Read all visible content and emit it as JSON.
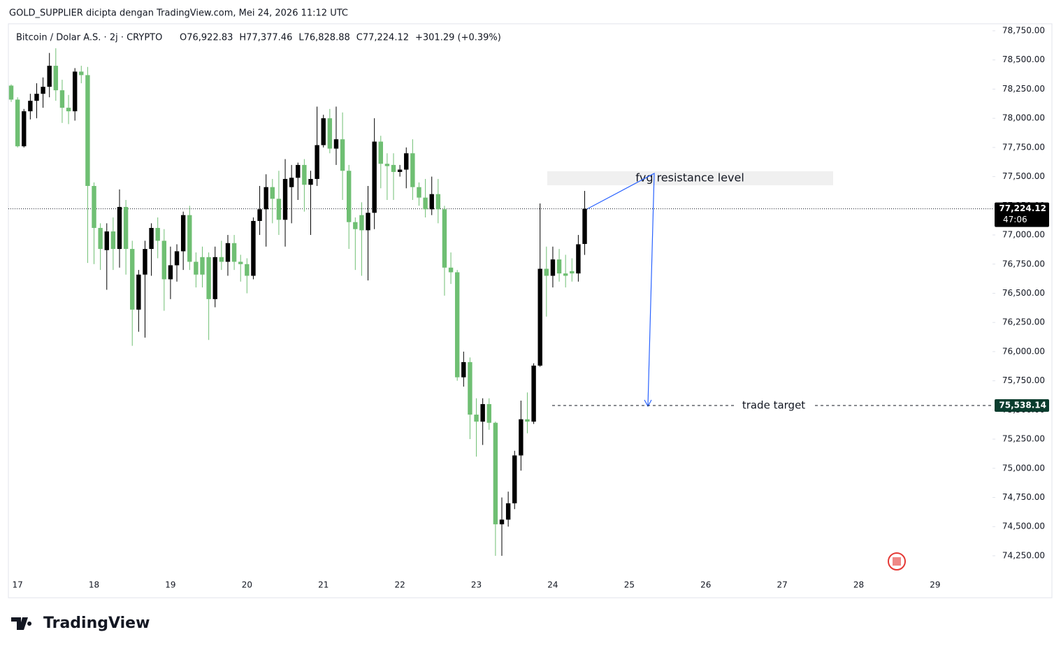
{
  "header": {
    "credit": "GOLD_SUPPLIER dicipta dengan TradingView.com, Mei 24, 2026 11:12 UTC",
    "brand": "TradingView"
  },
  "chart_data": {
    "type": "candlestick",
    "symbol": "Bitcoin / Dolar A.S. · 2j · CRYPTO",
    "legend_text": [
      "O76,922.83",
      "H77,377.46",
      "L76,828.88",
      "C77,224.12",
      "+301.29 (+0.39%)"
    ],
    "up_color": "#000000",
    "down_color": "#6fbf73",
    "x": [
      16.9167,
      17,
      17.0833,
      17.1667,
      17.25,
      17.3333,
      17.4167,
      17.5,
      17.5833,
      17.6667,
      17.75,
      17.8333,
      17.9167,
      18,
      18.0833,
      18.1667,
      18.25,
      18.3333,
      18.4167,
      18.5,
      18.5833,
      18.6667,
      18.75,
      18.8333,
      18.9167,
      19,
      19.0833,
      19.1667,
      19.25,
      19.3333,
      19.4167,
      19.5,
      19.5833,
      19.6667,
      19.75,
      19.8333,
      19.9167,
      20,
      20.0833,
      20.1667,
      20.25,
      20.3333,
      20.4167,
      20.5,
      20.5833,
      20.6667,
      20.75,
      20.8333,
      20.9167,
      21,
      21.0833,
      21.1667,
      21.25,
      21.3333,
      21.4167,
      21.5,
      21.5833,
      21.6667,
      21.75,
      21.8333,
      21.9167,
      22,
      22.0833,
      22.1667,
      22.25,
      22.3333,
      22.4167,
      22.5,
      22.5833,
      22.6667,
      22.75,
      22.8333,
      22.9167,
      23,
      23.0833,
      23.1667,
      23.25,
      23.3333,
      23.4167,
      23.5,
      23.5833,
      23.6667,
      23.75,
      23.8333,
      23.9167,
      24,
      24.0833,
      24.1667,
      24.25,
      24.3333,
      24.4167
    ],
    "open": [
      78280,
      78160,
      77760,
      78060,
      78150,
      78210,
      78270,
      78450,
      78240,
      78090,
      78060,
      78400,
      78370,
      77420,
      77060,
      76870,
      77030,
      76880,
      77240,
      76880,
      76360,
      76660,
      76880,
      77060,
      76950,
      76620,
      76740,
      76860,
      77170,
      76770,
      76810,
      76810,
      76450,
      76810,
      76770,
      76930,
      76770,
      76750,
      76650,
      77120,
      77220,
      77410,
      77310,
      77130,
      77410,
      77490,
      77600,
      77430,
      77480,
      77770,
      78000,
      77740,
      77820,
      77550,
      77110,
      77170,
      77040,
      77190,
      77800,
      77610,
      77600,
      77540,
      77560,
      77700,
      77410,
      77320,
      77220,
      77350,
      77220,
      76720,
      76680,
      75780,
      75910,
      75460,
      75400,
      75550,
      75390,
      74520,
      74560,
      74700,
      75110,
      75420,
      75400,
      75880,
      76710,
      76650,
      76790,
      76670,
      76690,
      76670,
      76922.83
    ],
    "high": [
      78290,
      78180,
      78080,
      78210,
      78300,
      78350,
      78560,
      78600,
      78330,
      78200,
      78430,
      78450,
      78440,
      77450,
      77100,
      77100,
      77150,
      77390,
      77300,
      76950,
      76700,
      76950,
      77100,
      77150,
      77050,
      76900,
      76920,
      77200,
      77250,
      76850,
      76900,
      76850,
      76900,
      76950,
      77000,
      77000,
      76830,
      76800,
      77150,
      77420,
      77520,
      77480,
      77550,
      77650,
      77600,
      77620,
      77650,
      77550,
      78100,
      78030,
      78080,
      78100,
      78050,
      77600,
      77150,
      77280,
      77420,
      78000,
      77850,
      77700,
      77700,
      77600,
      77750,
      77820,
      77450,
      77480,
      77500,
      77480,
      77250,
      76850,
      76700,
      76000,
      75950,
      75600,
      75600,
      75600,
      75400,
      74750,
      74800,
      75150,
      75580,
      75650,
      75900,
      77270,
      76900,
      76900,
      76880,
      76830,
      76800,
      77000,
      77377.46
    ],
    "low": [
      78140,
      77750,
      77750,
      77990,
      78000,
      78090,
      78180,
      78150,
      77960,
      77950,
      77980,
      78300,
      76760,
      76750,
      76700,
      76530,
      76700,
      76720,
      76660,
      76050,
      76170,
      76120,
      76650,
      76800,
      76350,
      76450,
      76600,
      76700,
      76700,
      76550,
      76550,
      76100,
      76380,
      76700,
      76650,
      76700,
      76600,
      76500,
      76620,
      77000,
      76900,
      77100,
      77000,
      76900,
      77100,
      77300,
      77200,
      77000,
      77420,
      77750,
      77700,
      77600,
      77300,
      76880,
      76700,
      76650,
      76610,
      77050,
      77400,
      77300,
      77300,
      77500,
      77400,
      77300,
      77250,
      77150,
      77170,
      77100,
      76480,
      76580,
      75750,
      75700,
      75250,
      75100,
      75200,
      75330,
      74250,
      74250,
      74500,
      74650,
      74980,
      75300,
      75380,
      75870,
      76300,
      76550,
      76600,
      76550,
      76600,
      76600,
      76828.88
    ],
    "close": [
      78160,
      77760,
      78060,
      78150,
      78210,
      78270,
      78450,
      78240,
      78090,
      78060,
      78400,
      78370,
      77420,
      77060,
      76880,
      77030,
      76880,
      77240,
      76880,
      76360,
      76660,
      76880,
      77060,
      76950,
      76620,
      76740,
      76860,
      77170,
      76770,
      76660,
      76660,
      76450,
      76810,
      76770,
      76930,
      76770,
      76750,
      76650,
      77120,
      77220,
      77410,
      77310,
      77130,
      77480,
      77490,
      77600,
      77430,
      77480,
      77770,
      78000,
      77740,
      77820,
      77550,
      77110,
      77050,
      77040,
      77190,
      77800,
      77610,
      77590,
      77540,
      77560,
      77700,
      77410,
      77320,
      77220,
      77350,
      77220,
      76720,
      76680,
      75780,
      75910,
      75460,
      75400,
      75550,
      75390,
      74520,
      74560,
      74700,
      75110,
      75420,
      75400,
      75880,
      76710,
      76650,
      76790,
      76670,
      76650,
      76670,
      76920,
      77224.12
    ],
    "xlim": [
      16.88,
      29.75
    ],
    "ylim": [
      74070,
      78810
    ],
    "xticks": [
      17,
      18,
      19,
      20,
      21,
      22,
      23,
      24,
      25,
      26,
      27,
      28,
      29
    ],
    "yticks": [
      {
        "value": 74250,
        "label": "74,250.00"
      },
      {
        "value": 74500,
        "label": "74,500.00"
      },
      {
        "value": 74750,
        "label": "74,750.00"
      },
      {
        "value": 75000,
        "label": "75,000.00"
      },
      {
        "value": 75250,
        "label": "75,250.00"
      },
      {
        "value": 75500,
        "label": "75,500.00"
      },
      {
        "value": 75750,
        "label": "75,750.00"
      },
      {
        "value": 76000,
        "label": "76,000.00"
      },
      {
        "value": 76250,
        "label": "76,250.00"
      },
      {
        "value": 76500,
        "label": "76,500.00"
      },
      {
        "value": 76750,
        "label": "76,750.00"
      },
      {
        "value": 77000,
        "label": "77,000.00"
      },
      {
        "value": 77250,
        "label": "77,250.00"
      },
      {
        "value": 77500,
        "label": "77,500.00"
      },
      {
        "value": 77750,
        "label": "77,750.00"
      },
      {
        "value": 78000,
        "label": "78,000.00"
      },
      {
        "value": 78250,
        "label": "78,250.00"
      },
      {
        "value": 78500,
        "label": "78,500.00"
      },
      {
        "value": 78750,
        "label": "78,750.00"
      }
    ],
    "last_price": {
      "value": 77224.12,
      "label": "77,224.12",
      "countdown": "47:06"
    },
    "target": {
      "value": 75538.14,
      "label": "75,538.14",
      "text": "trade target"
    },
    "annotation": "fvg resistance level"
  }
}
